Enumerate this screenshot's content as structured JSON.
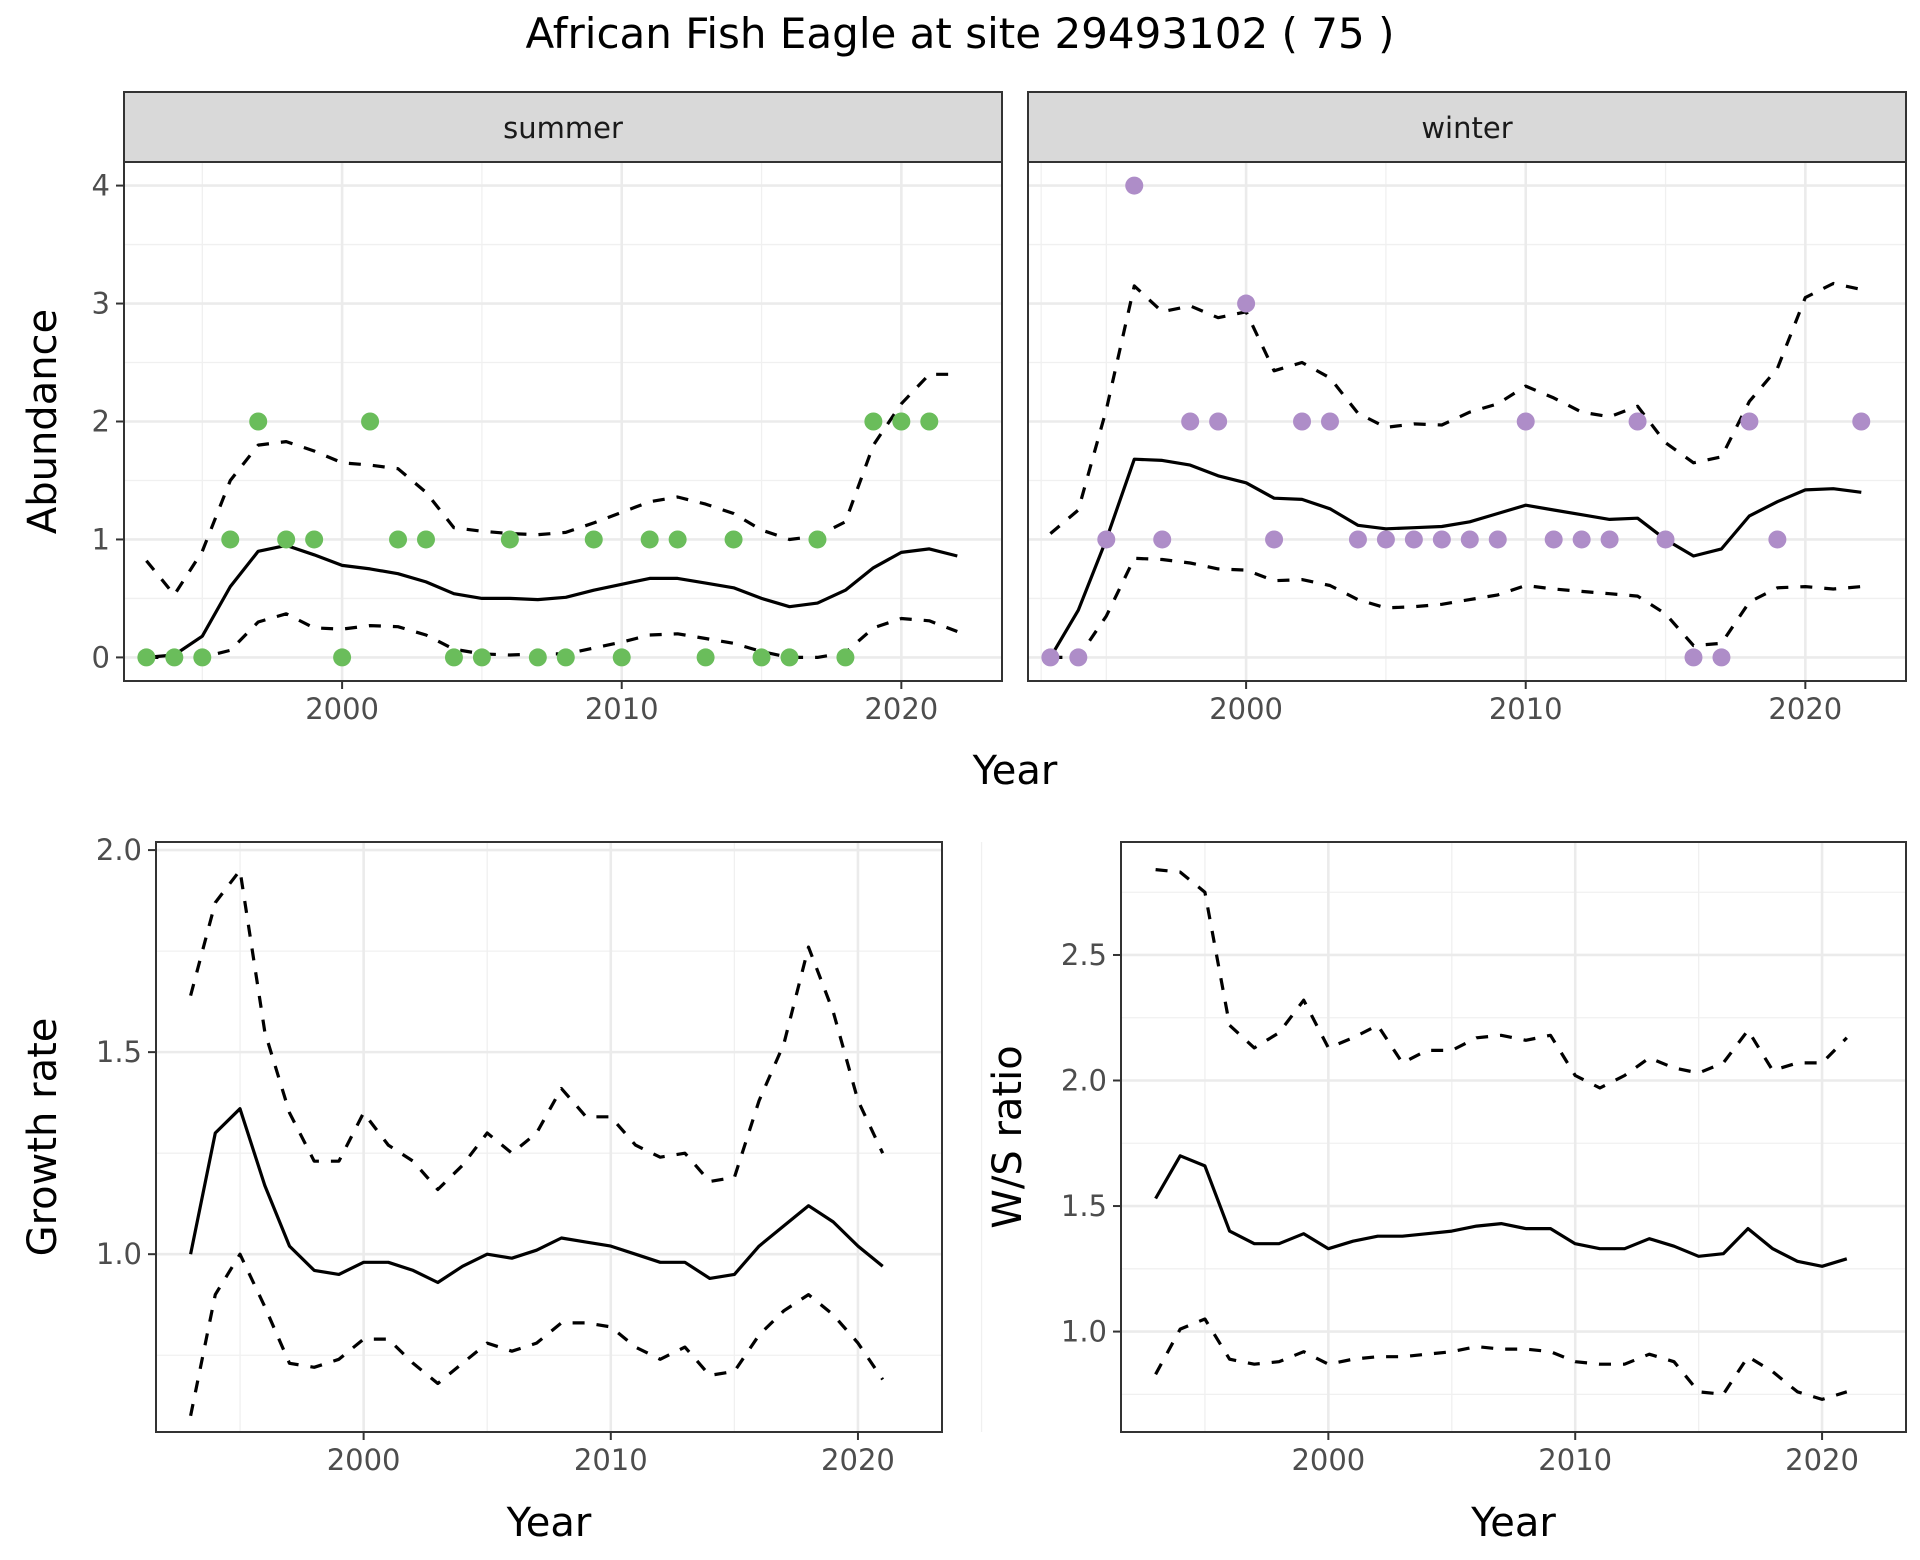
{
  "figure": {
    "title": "African Fish Eagle at site 29493102 ( 75 )",
    "shared_xlabel": "Year"
  },
  "chart_data": [
    {
      "type": "line",
      "panels": [
        "summer",
        "winter"
      ],
      "xlabel": "Year",
      "ylabel": "Abundance",
      "xlim": [
        1992.2,
        2023.6
      ],
      "ylim": [
        -0.2,
        4.2
      ],
      "xticks": [
        2000,
        2010,
        2020
      ],
      "yticks": [
        0,
        1,
        2,
        3,
        4
      ],
      "grid": true,
      "line_x": [
        1993,
        1994,
        1995,
        1996,
        1997,
        1998,
        1999,
        2000,
        2001,
        2002,
        2003,
        2004,
        2005,
        2006,
        2007,
        2008,
        2009,
        2010,
        2011,
        2012,
        2013,
        2014,
        2015,
        2016,
        2017,
        2018,
        2019,
        2020,
        2021,
        2022
      ],
      "summer": {
        "color": "#6abd5b",
        "points_x": [
          1993,
          1994,
          1995,
          1996,
          1997,
          1998,
          1999,
          2000,
          2001,
          2002,
          2003,
          2004,
          2005,
          2006,
          2007,
          2008,
          2009,
          2010,
          2011,
          2012,
          2013,
          2014,
          2015,
          2016,
          2017,
          2018,
          2019,
          2020,
          2021
        ],
        "points_y": [
          0,
          0,
          0,
          1,
          2,
          1,
          1,
          0,
          2,
          1,
          1,
          0,
          0,
          1,
          0,
          0,
          1,
          0,
          1,
          1,
          0,
          1,
          0,
          0,
          1,
          0,
          2,
          2,
          2
        ],
        "mean": [
          0.0,
          0.02,
          0.18,
          0.6,
          0.9,
          0.95,
          0.87,
          0.78,
          0.75,
          0.71,
          0.64,
          0.54,
          0.5,
          0.5,
          0.49,
          0.51,
          0.57,
          0.62,
          0.67,
          0.67,
          0.63,
          0.59,
          0.5,
          0.43,
          0.46,
          0.57,
          0.76,
          0.89,
          0.92,
          0.86
        ],
        "upper": [
          0.82,
          0.53,
          0.9,
          1.5,
          1.8,
          1.83,
          1.75,
          1.65,
          1.63,
          1.6,
          1.4,
          1.1,
          1.07,
          1.05,
          1.04,
          1.06,
          1.14,
          1.23,
          1.32,
          1.36,
          1.3,
          1.22,
          1.08,
          1.0,
          1.03,
          1.15,
          1.8,
          2.15,
          2.4,
          2.4
        ],
        "lower": [
          0.0,
          0.0,
          0.0,
          0.06,
          0.3,
          0.37,
          0.25,
          0.24,
          0.27,
          0.26,
          0.19,
          0.07,
          0.03,
          0.02,
          0.03,
          0.03,
          0.08,
          0.13,
          0.19,
          0.2,
          0.16,
          0.12,
          0.05,
          0.0,
          0.0,
          0.04,
          0.25,
          0.33,
          0.31,
          0.22
        ]
      },
      "winter": {
        "color": "#ae8dc8",
        "points_x": [
          1993,
          1994,
          1995,
          1996,
          1997,
          1998,
          1999,
          2000,
          2001,
          2002,
          2003,
          2004,
          2005,
          2006,
          2007,
          2008,
          2009,
          2010,
          2011,
          2012,
          2013,
          2014,
          2015,
          2016,
          2017,
          2018,
          2019,
          2022
        ],
        "points_y": [
          0,
          0,
          1,
          4,
          1,
          2,
          2,
          3,
          1,
          2,
          2,
          1,
          1,
          1,
          1,
          1,
          1,
          2,
          1,
          1,
          1,
          2,
          1,
          0,
          0,
          2,
          1,
          2
        ],
        "mean": [
          0.0,
          0.4,
          1.0,
          1.68,
          1.67,
          1.63,
          1.54,
          1.48,
          1.35,
          1.34,
          1.26,
          1.12,
          1.09,
          1.1,
          1.11,
          1.15,
          1.22,
          1.29,
          1.25,
          1.21,
          1.17,
          1.18,
          1.0,
          0.86,
          0.92,
          1.2,
          1.32,
          1.42,
          1.43,
          1.4
        ],
        "upper": [
          1.05,
          1.25,
          2.1,
          3.15,
          2.93,
          2.98,
          2.88,
          2.93,
          2.43,
          2.5,
          2.37,
          2.07,
          1.95,
          1.98,
          1.97,
          2.08,
          2.15,
          2.3,
          2.2,
          2.08,
          2.04,
          2.13,
          1.82,
          1.65,
          1.7,
          2.17,
          2.45,
          3.05,
          3.17,
          3.12
        ],
        "lower": [
          0.0,
          0.0,
          0.35,
          0.84,
          0.83,
          0.8,
          0.75,
          0.74,
          0.65,
          0.66,
          0.61,
          0.49,
          0.42,
          0.43,
          0.45,
          0.49,
          0.53,
          0.61,
          0.58,
          0.56,
          0.54,
          0.52,
          0.37,
          0.1,
          0.12,
          0.47,
          0.59,
          0.6,
          0.58,
          0.6
        ]
      }
    },
    {
      "type": "line",
      "xlabel": "Year",
      "ylabel": "Growth rate",
      "xlim": [
        1991.6,
        2023.4
      ],
      "ylim": [
        0.56,
        2.02
      ],
      "xticks": [
        2000,
        2010,
        2020
      ],
      "yticks": [
        1.0,
        1.5,
        2.0
      ],
      "ytick_labels": [
        "1.0",
        "1.5",
        "2.0"
      ],
      "grid": true,
      "x": [
        1993,
        1994,
        1995,
        1996,
        1997,
        1998,
        1999,
        2000,
        2001,
        2002,
        2003,
        2004,
        2005,
        2006,
        2007,
        2008,
        2009,
        2010,
        2011,
        2012,
        2013,
        2014,
        2015,
        2016,
        2017,
        2018,
        2019,
        2020,
        2021
      ],
      "mean": [
        1.0,
        1.3,
        1.36,
        1.17,
        1.02,
        0.96,
        0.95,
        0.98,
        0.98,
        0.96,
        0.93,
        0.97,
        1.0,
        0.99,
        1.01,
        1.04,
        1.03,
        1.02,
        1.0,
        0.98,
        0.98,
        0.94,
        0.95,
        1.02,
        1.07,
        1.12,
        1.08,
        1.02,
        0.97
      ],
      "upper": [
        1.64,
        1.87,
        1.95,
        1.55,
        1.35,
        1.23,
        1.23,
        1.35,
        1.27,
        1.23,
        1.16,
        1.22,
        1.3,
        1.25,
        1.3,
        1.41,
        1.34,
        1.34,
        1.27,
        1.24,
        1.25,
        1.18,
        1.19,
        1.38,
        1.52,
        1.76,
        1.6,
        1.38,
        1.25
      ],
      "lower": [
        0.6,
        0.9,
        1.0,
        0.87,
        0.73,
        0.72,
        0.74,
        0.79,
        0.79,
        0.73,
        0.68,
        0.73,
        0.78,
        0.76,
        0.78,
        0.83,
        0.83,
        0.82,
        0.77,
        0.74,
        0.77,
        0.7,
        0.71,
        0.8,
        0.86,
        0.9,
        0.85,
        0.78,
        0.69
      ]
    },
    {
      "type": "line",
      "xlabel": "Year",
      "ylabel": "W/S ratio",
      "xlim": [
        1991.6,
        2023.4
      ],
      "ylim": [
        0.6,
        2.95
      ],
      "xticks": [
        2000,
        2010,
        2020
      ],
      "yticks": [
        1.0,
        1.5,
        2.0,
        2.5
      ],
      "ytick_labels": [
        "1.0",
        "1.5",
        "2.0",
        "2.5"
      ],
      "grid": true,
      "x": [
        1993,
        1994,
        1995,
        1996,
        1997,
        1998,
        1999,
        2000,
        2001,
        2002,
        2003,
        2004,
        2005,
        2006,
        2007,
        2008,
        2009,
        2010,
        2011,
        2012,
        2013,
        2014,
        2015,
        2016,
        2017,
        2018,
        2019,
        2020,
        2021
      ],
      "mean": [
        1.53,
        1.7,
        1.66,
        1.4,
        1.35,
        1.35,
        1.39,
        1.33,
        1.36,
        1.38,
        1.38,
        1.39,
        1.4,
        1.42,
        1.43,
        1.41,
        1.41,
        1.35,
        1.33,
        1.33,
        1.37,
        1.34,
        1.3,
        1.31,
        1.41,
        1.33,
        1.28,
        1.26,
        1.29
      ],
      "upper": [
        2.84,
        2.83,
        2.75,
        2.22,
        2.13,
        2.19,
        2.32,
        2.13,
        2.17,
        2.22,
        2.07,
        2.12,
        2.12,
        2.17,
        2.18,
        2.16,
        2.18,
        2.02,
        1.97,
        2.02,
        2.09,
        2.05,
        2.03,
        2.07,
        2.2,
        2.04,
        2.07,
        2.07,
        2.17
      ],
      "lower": [
        0.83,
        1.01,
        1.05,
        0.89,
        0.87,
        0.88,
        0.92,
        0.87,
        0.89,
        0.9,
        0.9,
        0.91,
        0.92,
        0.94,
        0.93,
        0.93,
        0.92,
        0.88,
        0.87,
        0.87,
        0.91,
        0.88,
        0.76,
        0.75,
        0.9,
        0.84,
        0.76,
        0.73,
        0.76
      ]
    }
  ]
}
